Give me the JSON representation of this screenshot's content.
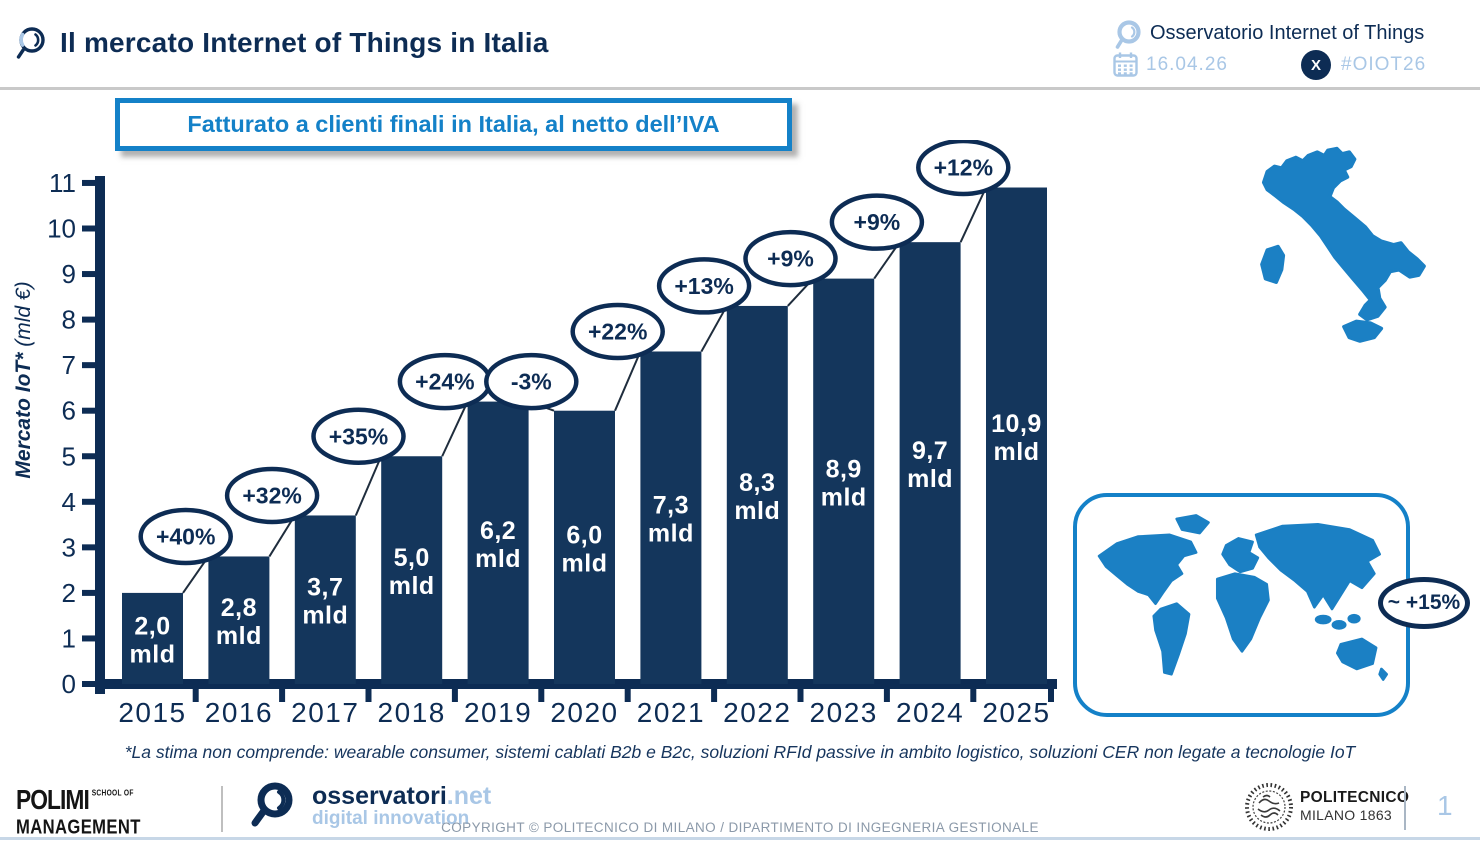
{
  "header": {
    "title": "Il mercato Internet of Things in Italia",
    "observatory_name": "Osservatorio Internet of Things",
    "date": "16.04.26",
    "hashtag": "#OIOT26",
    "x_icon_letter": "X"
  },
  "banner": {
    "title": "Fatturato a clienti finali in Italia, al netto dell’IVA"
  },
  "chart_data": {
    "type": "bar",
    "title": "Fatturato a clienti finali in Italia, al netto dell’IVA",
    "ylabel_main": "Mercato IoT*",
    "ylabel_unit": "(mld €)",
    "ylim": [
      0,
      11
    ],
    "ytick_step": 1,
    "grid": false,
    "categories": [
      "2015",
      "2016",
      "2017",
      "2018",
      "2019",
      "2020",
      "2021",
      "2022",
      "2023",
      "2024",
      "2025"
    ],
    "values": [
      2.0,
      2.8,
      3.7,
      5.0,
      6.2,
      6.0,
      7.3,
      8.3,
      8.9,
      9.7,
      10.9
    ],
    "value_labels": [
      "2,0",
      "2,8",
      "3,7",
      "5,0",
      "6,2",
      "6,0",
      "7,3",
      "8,3",
      "8,9",
      "9,7",
      "10,9"
    ],
    "unit_label": "mld",
    "growth_labels": [
      "+40%",
      "+32%",
      "+35%",
      "+24%",
      "-3%",
      "+22%",
      "+13%",
      "+9%",
      "+9%",
      "+12%"
    ],
    "world_growth_label": "~ +15%",
    "bar_color": "#14365c",
    "accent_color": "#1481c8",
    "navy_color": "#0d2c54"
  },
  "footnote": "*La stima non comprende: wearable consumer, sistemi cablati B2b e B2c, soluzioni RFId passive in ambito logistico, soluzioni CER non legate a tecnologie IoT",
  "footer": {
    "polimi_name": "POLIMI",
    "polimi_school": "SCHOOL OF",
    "polimi_management": "MANAGEMENT",
    "osservatori_brand": "osservatori",
    "osservatori_net": ".net",
    "osservatori_tagline": "digital innovation",
    "copyright": "COPYRIGHT © POLITECNICO DI MILANO / DIPARTIMENTO DI INGEGNERIA GESTIONALE",
    "politecnico_name": "POLITECNICO",
    "politecnico_sub": "MILANO 1863",
    "page_number": "1"
  },
  "colors": {
    "navy": "#0d2c54",
    "bar_navy": "#14365c",
    "accent_blue": "#1481c8",
    "map_blue": "#1b80c4",
    "light_blue": "#a9c7e6",
    "copyright_gray": "#8b99a9"
  }
}
